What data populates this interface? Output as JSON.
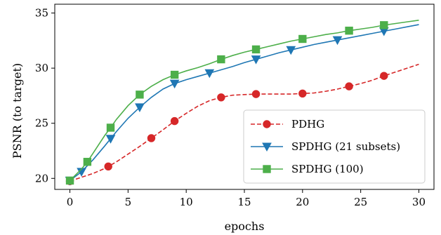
{
  "chart_data": {
    "type": "line",
    "xlabel": "epochs",
    "ylabel": "PSNR (to target)",
    "xlim": [
      -1.3,
      31.3
    ],
    "ylim": [
      19.0,
      35.8
    ],
    "xticks": [
      0,
      5,
      10,
      15,
      20,
      25,
      30
    ],
    "yticks": [
      20,
      25,
      30,
      35
    ],
    "grid": false,
    "legend_position": "lower right",
    "series": [
      {
        "name": "PDHG",
        "color": "#d62728",
        "line_style": "dashed",
        "marker": "circle",
        "x": [
          0,
          1,
          2,
          3,
          4,
          5,
          6,
          7,
          8,
          9,
          10,
          11,
          12,
          13,
          14,
          15,
          16,
          17,
          18,
          19,
          20,
          21,
          22,
          23,
          24,
          25,
          26,
          27,
          28,
          29,
          30
        ],
        "y": [
          19.75,
          20.1,
          20.45,
          20.9,
          21.5,
          22.2,
          22.9,
          23.65,
          24.4,
          25.2,
          25.9,
          26.55,
          27.05,
          27.35,
          27.55,
          27.6,
          27.65,
          27.65,
          27.65,
          27.65,
          27.7,
          27.75,
          27.9,
          28.1,
          28.35,
          28.6,
          28.9,
          29.3,
          29.65,
          30.0,
          30.35
        ],
        "marker_x": [
          0,
          3.3,
          7,
          9,
          13,
          16,
          20,
          24,
          27
        ]
      },
      {
        "name": "SPDHG (21 subsets)",
        "color": "#1f77b4",
        "line_style": "solid",
        "marker": "triangle-down",
        "x": [
          0,
          1,
          2,
          3,
          4,
          5,
          6,
          7,
          8,
          9,
          10,
          11,
          12,
          13,
          14,
          15,
          16,
          17,
          18,
          19,
          20,
          21,
          22,
          23,
          24,
          25,
          26,
          27,
          28,
          29,
          30
        ],
        "y": [
          19.8,
          20.6,
          21.7,
          22.95,
          24.25,
          25.45,
          26.45,
          27.35,
          28.1,
          28.6,
          28.95,
          29.25,
          29.55,
          29.85,
          30.15,
          30.5,
          30.8,
          31.1,
          31.4,
          31.65,
          31.9,
          32.15,
          32.35,
          32.55,
          32.75,
          32.95,
          33.15,
          33.35,
          33.55,
          33.75,
          33.95
        ],
        "marker_x": [
          0,
          1,
          3.5,
          6,
          9,
          12,
          16,
          19,
          23,
          27
        ]
      },
      {
        "name": "SPDHG (100)",
        "color": "#4daf4a",
        "line_style": "solid",
        "marker": "square",
        "x": [
          0,
          1,
          1.5,
          2,
          3,
          3.5,
          4,
          5,
          6,
          7,
          8,
          9,
          10,
          11,
          12,
          13,
          14,
          15,
          16,
          17,
          18,
          19,
          20,
          21,
          22,
          23,
          24,
          25,
          26,
          27,
          28,
          29,
          30
        ],
        "y": [
          19.8,
          20.85,
          21.5,
          22.3,
          23.9,
          24.6,
          25.35,
          26.6,
          27.6,
          28.35,
          28.95,
          29.4,
          29.75,
          30.05,
          30.4,
          30.8,
          31.15,
          31.45,
          31.7,
          31.95,
          32.2,
          32.45,
          32.65,
          32.85,
          33.05,
          33.2,
          33.4,
          33.55,
          33.7,
          33.9,
          34.05,
          34.2,
          34.35
        ],
        "marker_x": [
          0,
          1.5,
          3.5,
          6,
          9,
          13,
          16,
          20,
          24,
          27
        ]
      }
    ]
  }
}
